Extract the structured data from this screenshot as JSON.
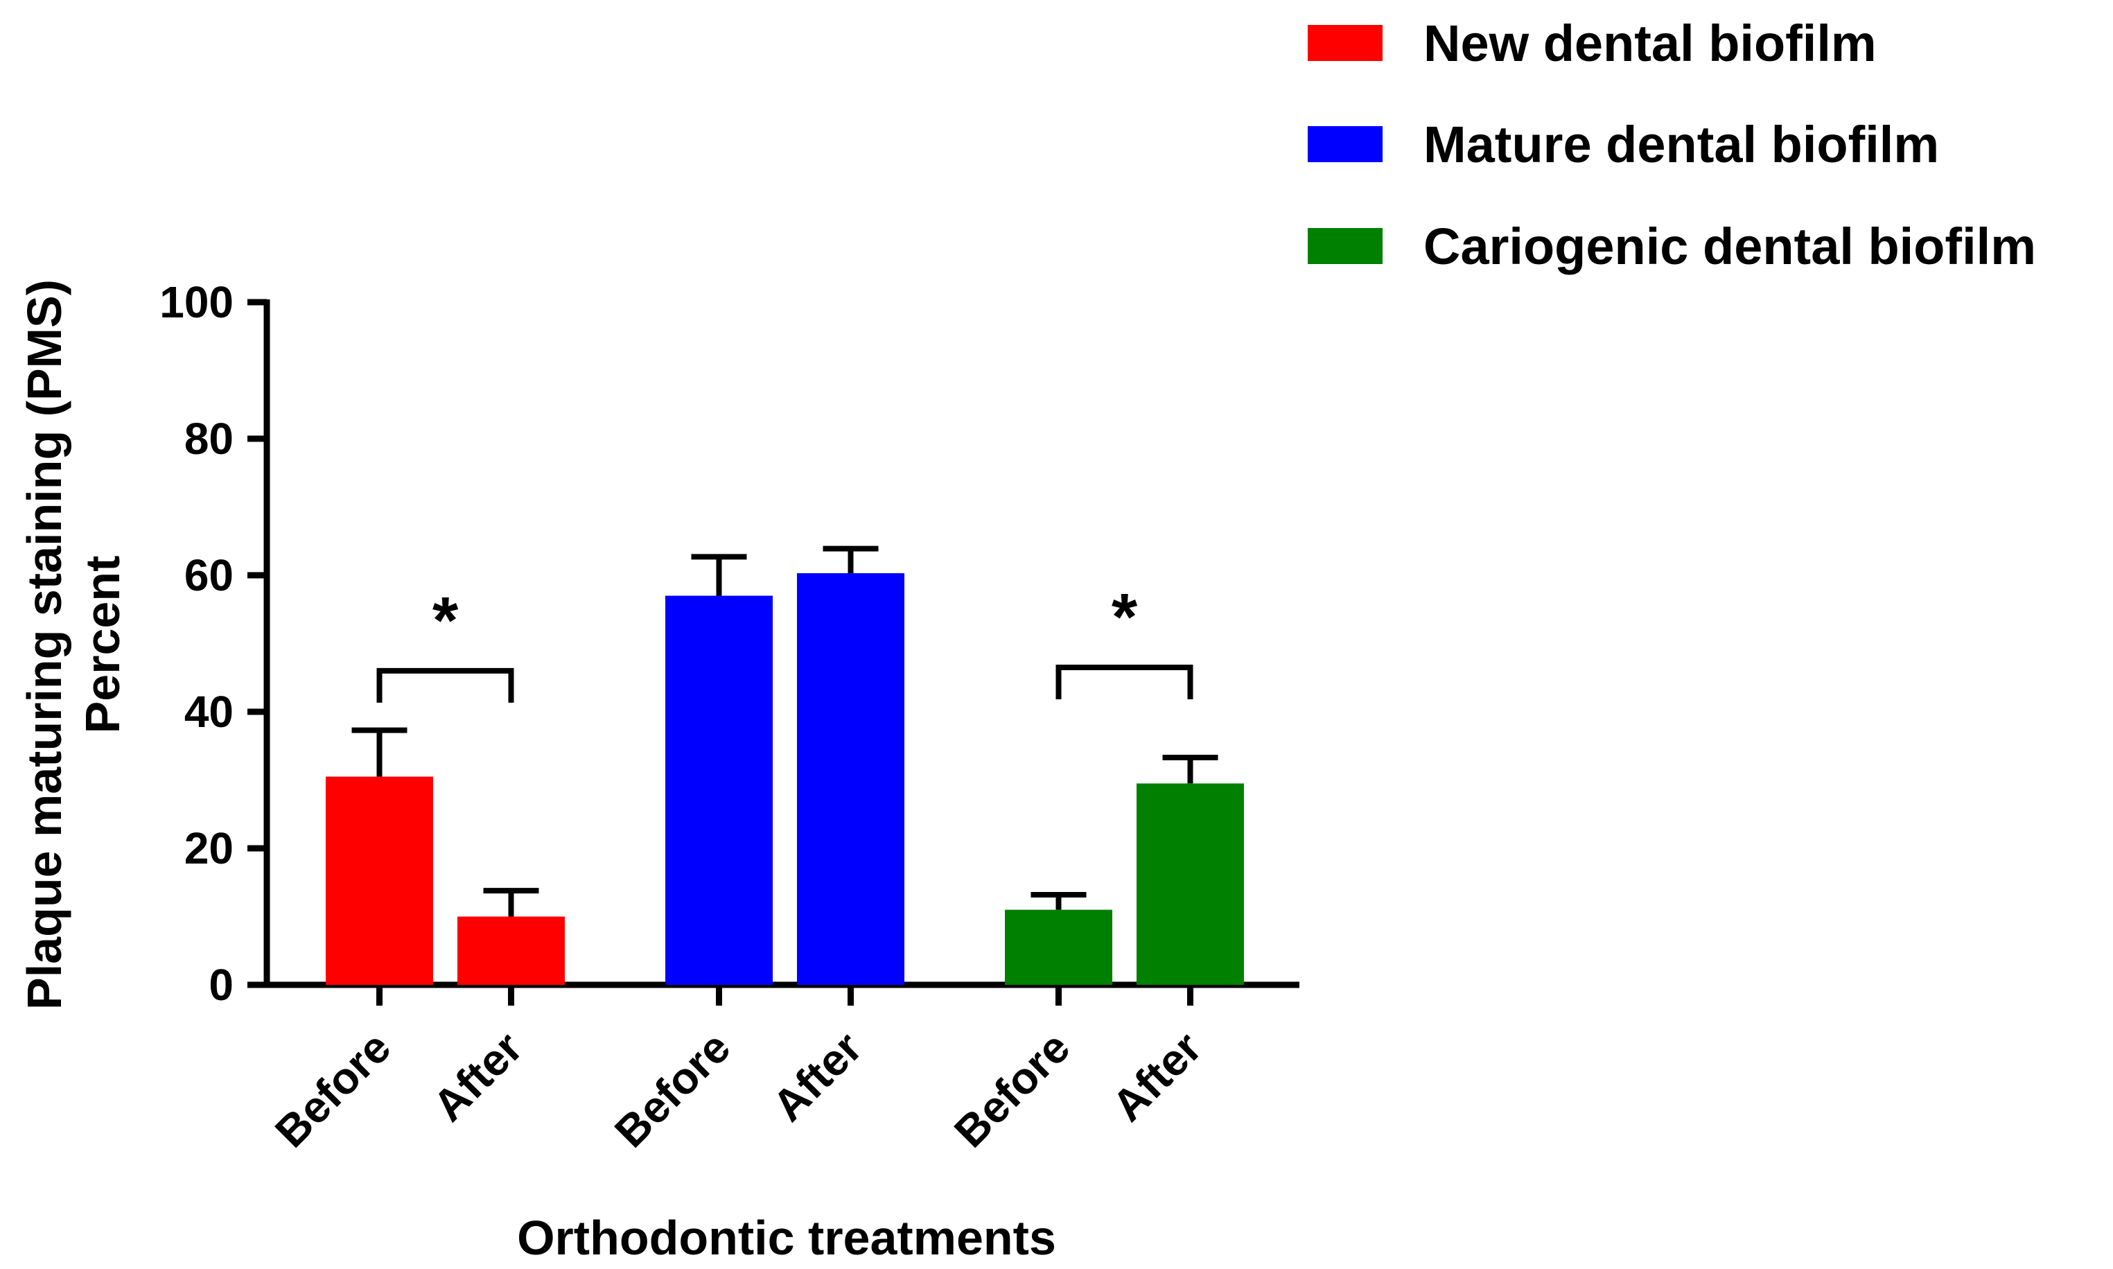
{
  "chart_data": {
    "type": "bar",
    "title": "",
    "xlabel": "Orthodontic treatments",
    "ylabel_lines": [
      "Plaque maturing staining (PMS)",
      "Percent"
    ],
    "ylim": [
      0,
      100
    ],
    "yticks": [
      "0",
      "20",
      "40",
      "60",
      "80",
      "100"
    ],
    "grid": false,
    "legend_position": "top-right",
    "series": [
      {
        "name": "New  dental biofilm",
        "color": "#ff0000",
        "categories": [
          "Before",
          "After"
        ],
        "values": [
          30.5,
          10.0
        ],
        "errors": [
          6.8,
          3.8
        ]
      },
      {
        "name": "Mature dental biofilm",
        "color": "#0000ff",
        "categories": [
          "Before",
          "After"
        ],
        "values": [
          57.0,
          60.3
        ],
        "errors": [
          5.7,
          3.6
        ]
      },
      {
        "name": "Cariogenic dental biofilm",
        "color": "#008000",
        "categories": [
          "Before",
          "After"
        ],
        "values": [
          11.0,
          29.5
        ],
        "errors": [
          2.2,
          3.8
        ]
      }
    ],
    "annotations": [
      {
        "text": "*",
        "group": 0,
        "bracket_y": 46
      },
      {
        "text": "*",
        "group": 2,
        "bracket_y": 46.5
      }
    ]
  }
}
